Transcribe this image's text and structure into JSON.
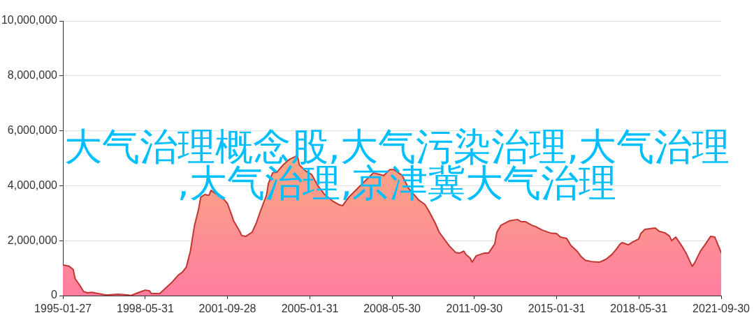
{
  "chart_data": {
    "type": "area",
    "title": "大气治理概念股,大气污染治理,大气治理,大气治理,京津冀大气治理",
    "x": [
      "1995-01-27",
      "1995-04-28",
      "1995-06-28",
      "1995-07-28",
      "1995-09-28",
      "1995-11-28",
      "1996-01-28",
      "1996-03-28",
      "1996-10-28",
      "1997-04-28",
      "1997-09-28",
      "1997-10-28",
      "1998-02-28",
      "1998-05-28",
      "1998-07-28",
      "1998-08-28",
      "1998-12-28",
      "1999-03-28",
      "1999-06-28",
      "1999-09-28",
      "1999-11-28",
      "2000-01-28",
      "2000-03-28",
      "2000-05-28",
      "2000-07-28",
      "2000-08-28",
      "2000-10-28",
      "2000-12-28",
      "2001-01-28",
      "2001-03-28",
      "2001-05-28",
      "2001-07-28",
      "2001-09-28",
      "2001-11-28",
      "2001-12-28",
      "2002-03-28",
      "2002-04-28",
      "2002-06-28",
      "2002-09-28",
      "2002-11-28",
      "2003-01-28",
      "2003-04-28",
      "2003-05-28",
      "2003-07-28",
      "2003-09-28",
      "2003-12-28",
      "2004-03-28",
      "2004-07-28",
      "2004-08-28",
      "2004-11-28",
      "2005-02-28",
      "2005-05-28",
      "2005-08-28",
      "2005-12-28",
      "2006-03-28",
      "2006-05-28",
      "2006-08-28",
      "2006-10-28",
      "2007-03-28",
      "2007-08-28",
      "2008-01-28",
      "2008-04-28",
      "2008-06-28",
      "2008-10-28",
      "2009-01-28",
      "2009-06-28",
      "2009-09-28",
      "2009-11-28",
      "2010-02-28",
      "2010-04-28",
      "2010-07-28",
      "2010-09-28",
      "2010-12-28",
      "2011-02-28",
      "2011-04-28",
      "2011-05-28",
      "2011-07-28",
      "2011-08-28",
      "2011-10-28",
      "2011-12-28",
      "2012-02-28",
      "2012-04-28",
      "2012-07-28",
      "2012-08-28",
      "2012-10-28",
      "2013-02-28",
      "2013-06-28",
      "2013-08-28",
      "2013-10-28",
      "2014-01-28",
      "2014-03-28",
      "2014-06-28",
      "2014-10-28",
      "2015-01-28",
      "2015-03-28",
      "2015-06-28",
      "2015-08-28",
      "2015-11-28",
      "2016-01-28",
      "2016-03-28",
      "2016-06-28",
      "2016-10-28",
      "2017-01-28",
      "2017-04-28",
      "2017-06-28",
      "2017-08-28",
      "2017-09-28",
      "2017-12-28",
      "2018-02-28",
      "2018-05-28",
      "2018-06-28",
      "2018-08-28",
      "2019-01-28",
      "2019-03-28",
      "2019-06-28",
      "2019-08-28",
      "2019-09-28",
      "2019-11-28",
      "2020-02-28",
      "2020-04-28",
      "2020-07-28",
      "2020-08-28",
      "2020-11-28",
      "2021-01-28",
      "2021-04-28",
      "2021-06-28",
      "2021-07-28",
      "2021-09-30"
    ],
    "values": [
      1120000,
      1070000,
      950000,
      610000,
      400000,
      150000,
      100000,
      120000,
      20000,
      50000,
      20000,
      0,
      120000,
      200000,
      180000,
      80000,
      70000,
      270000,
      480000,
      740000,
      850000,
      1040000,
      1620000,
      2560000,
      3150000,
      3580000,
      3680000,
      3650000,
      3830000,
      3730000,
      3650000,
      3530000,
      3350000,
      2940000,
      2720000,
      2340000,
      2180000,
      2160000,
      2310000,
      2640000,
      3070000,
      3650000,
      4090000,
      4470000,
      4490000,
      4750000,
      4950000,
      5100000,
      4750000,
      4540000,
      4400000,
      4000000,
      3700000,
      3450000,
      3320000,
      3270000,
      3580000,
      3730000,
      4100000,
      4470000,
      4370000,
      4590000,
      4590000,
      4370000,
      3910000,
      3480000,
      3320000,
      3070000,
      2640000,
      2310000,
      2000000,
      1800000,
      1570000,
      1550000,
      1620000,
      1500000,
      1370000,
      1220000,
      1450000,
      1500000,
      1550000,
      1550000,
      1880000,
      2310000,
      2560000,
      2720000,
      2770000,
      2690000,
      2690000,
      2560000,
      2510000,
      2390000,
      2280000,
      2260000,
      2130000,
      2080000,
      1830000,
      1620000,
      1420000,
      1290000,
      1240000,
      1220000,
      1320000,
      1500000,
      1680000,
      1880000,
      1930000,
      1850000,
      1950000,
      2060000,
      2260000,
      2410000,
      2460000,
      2340000,
      2280000,
      2160000,
      2000000,
      2130000,
      1800000,
      1550000,
      1070000,
      1170000,
      1620000,
      1830000,
      2160000,
      2130000,
      1950000,
      1570000
    ],
    "color": "#c23531",
    "xlim": [
      "1995-01-27",
      "2021-09-30"
    ],
    "xticks": [
      "1995-01-27",
      "1998-05-31",
      "2001-09-28",
      "2005-01-31",
      "2008-05-30",
      "2011-09-30",
      "2015-01-31",
      "2018-05-31",
      "2021-09-30"
    ],
    "ylim": [
      0,
      10000000
    ],
    "yticks": [
      0,
      {
        "value": 2000000,
        "label": "2,000,000"
      },
      {
        "value": 4000000,
        "label": "4,000,000"
      },
      {
        "value": 6000000,
        "label": "6,000,000"
      },
      {
        "value": 8000000,
        "label": "8,000,000"
      },
      {
        "value": 10000000,
        "label": "10,000,000"
      }
    ],
    "grid": "y",
    "marker": "none"
  }
}
